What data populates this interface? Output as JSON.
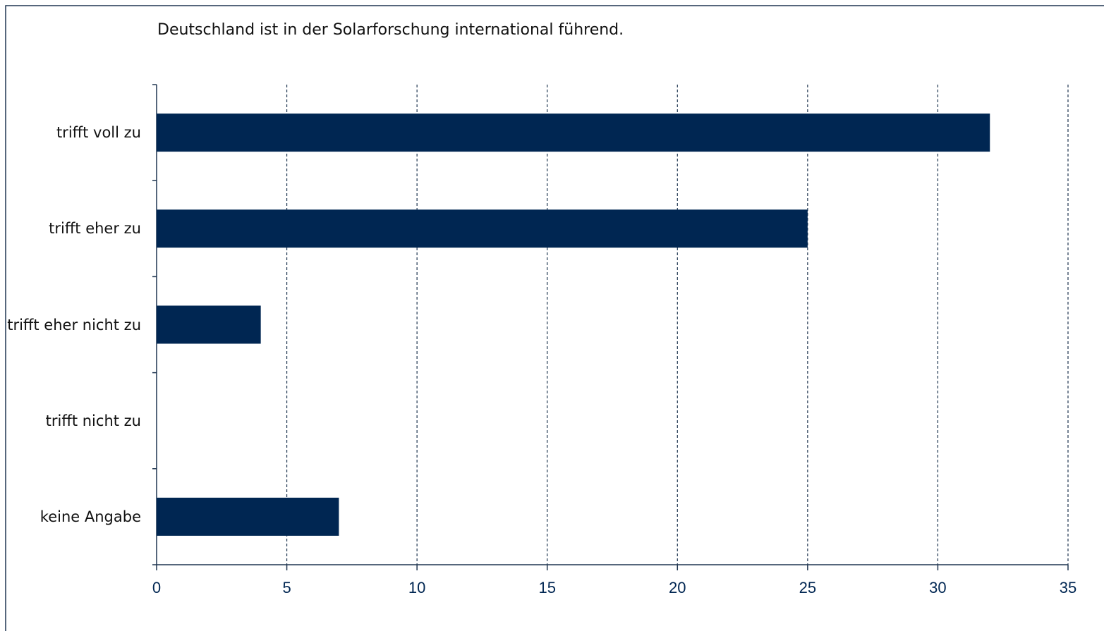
{
  "chart_data": {
    "type": "bar",
    "orientation": "horizontal",
    "title": "Deutschland ist in der Solarforschung international führend.",
    "categories": [
      "trifft voll zu",
      "trifft eher zu",
      "trifft eher nicht zu",
      "trifft nicht zu",
      "keine Angabe"
    ],
    "values": [
      32,
      25,
      4,
      0,
      7
    ],
    "color": "#002652",
    "xlim": [
      0,
      35
    ],
    "xticks": [
      0,
      5,
      10,
      15,
      20,
      25,
      30,
      35
    ],
    "grid": true
  }
}
